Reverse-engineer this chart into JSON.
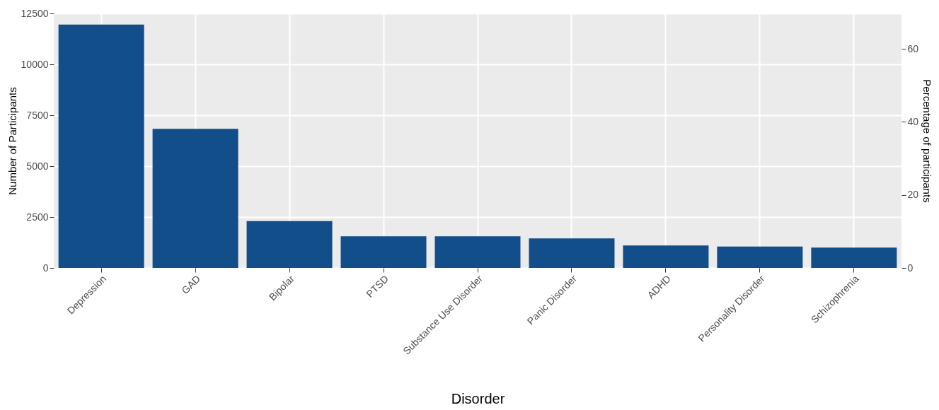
{
  "chart_data": {
    "type": "bar",
    "categories": [
      "Depression",
      "GAD",
      "Bipolar",
      "PTSD",
      "Substance Use Disorder",
      "Panic Disorder",
      "ADHD",
      "Personality Disorder",
      "Schizophrenia"
    ],
    "values": [
      11950,
      6830,
      2300,
      1550,
      1550,
      1450,
      1100,
      1050,
      1000
    ],
    "color": "#114e8a",
    "xlabel": "Disorder",
    "ylabel": "Number of Participants",
    "y2label": "Percentage of participants",
    "ylim": [
      0,
      12500
    ],
    "yticks": [
      0,
      2500,
      5000,
      7500,
      10000,
      12500
    ],
    "y2lim": [
      0,
      69.7
    ],
    "y2ticks": [
      0,
      20,
      40,
      60
    ],
    "grid": true
  }
}
